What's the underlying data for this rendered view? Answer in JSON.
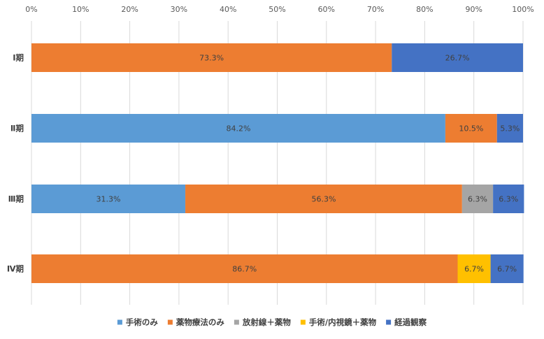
{
  "chart_data": {
    "type": "bar",
    "orientation": "horizontal",
    "stacked": "percent",
    "categories": [
      "Ⅰ期",
      "Ⅱ期",
      "Ⅲ期",
      "Ⅳ期"
    ],
    "series": [
      {
        "name": "手術のみ",
        "color": "#5B9BD5",
        "values": [
          0,
          84.2,
          31.3,
          0
        ],
        "labels": [
          "",
          "84.2%",
          "31.3%",
          ""
        ]
      },
      {
        "name": "薬物療法のみ",
        "color": "#ED7D31",
        "values": [
          73.3,
          10.5,
          56.3,
          86.7
        ],
        "labels": [
          "73.3%",
          "10.5%",
          "56.3%",
          "86.7%"
        ]
      },
      {
        "name": "放射線＋薬物",
        "color": "#A5A5A5",
        "values": [
          0,
          0,
          6.3,
          0
        ],
        "labels": [
          "",
          "",
          "6.3%",
          ""
        ]
      },
      {
        "name": "手術/内視鏡＋薬物",
        "color": "#FFC000",
        "values": [
          0,
          0,
          0,
          6.7
        ],
        "labels": [
          "",
          "",
          "",
          "6.7%"
        ]
      },
      {
        "name": "経過観察",
        "color": "#4472C4",
        "values": [
          26.7,
          5.3,
          6.3,
          6.7
        ],
        "labels": [
          "26.7%",
          "5.3%",
          "6.3%",
          "6.7%"
        ]
      }
    ],
    "x_ticks": [
      "0%",
      "10%",
      "20%",
      "30%",
      "40%",
      "50%",
      "60%",
      "70%",
      "80%",
      "90%",
      "100%"
    ],
    "xlim": [
      0,
      100
    ],
    "x_axis_position": "top",
    "grid": true,
    "legend": "bottom",
    "title": "",
    "xlabel": "",
    "ylabel": ""
  }
}
